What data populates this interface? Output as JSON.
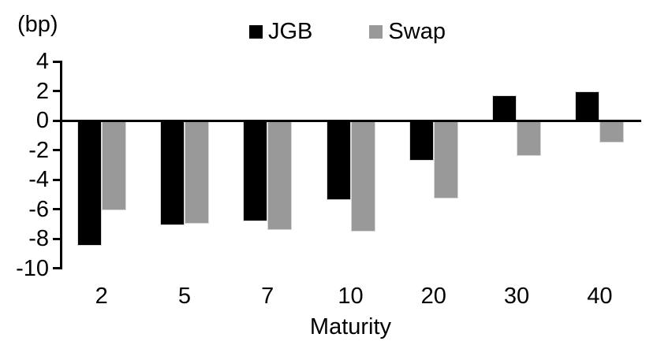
{
  "chart_data": {
    "type": "bar",
    "title": "",
    "unit_label": "(bp)",
    "xlabel": "Maturity",
    "ylabel": "",
    "categories": [
      "2",
      "5",
      "7",
      "10",
      "20",
      "30",
      "40"
    ],
    "series": [
      {
        "name": "JGB",
        "color": "#000000",
        "values": [
          -8.5,
          -7.1,
          -6.8,
          -5.4,
          -2.7,
          1.7,
          2.0
        ]
      },
      {
        "name": "Swap",
        "color": "#999999",
        "values": [
          -6.1,
          -7.0,
          -7.4,
          -7.5,
          -5.3,
          -2.4,
          -1.5
        ]
      }
    ],
    "ylim": [
      -10,
      4
    ],
    "yticks": [
      4,
      2,
      0,
      -2,
      -4,
      -6,
      -8,
      -10
    ],
    "ytick_step": 2,
    "legend_position": "top-center",
    "grid": false,
    "bar_border_color": "#d9d9d9",
    "axis_color": "#000000"
  }
}
